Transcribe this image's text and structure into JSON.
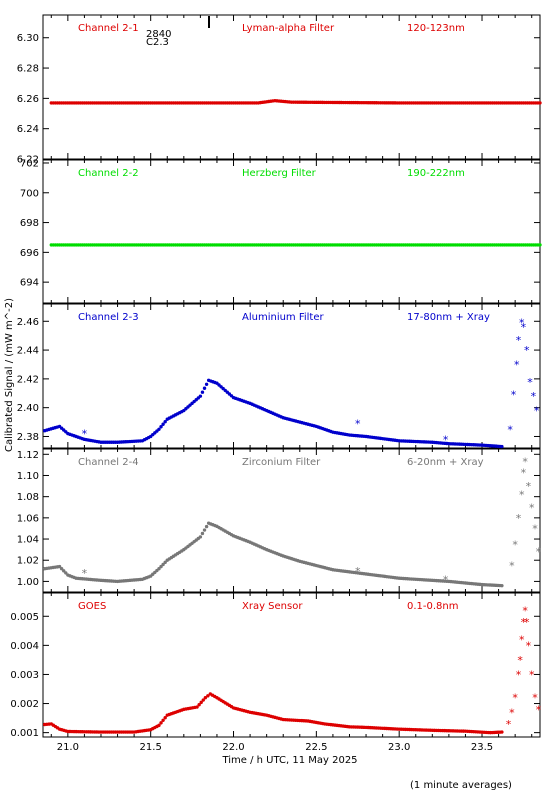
{
  "chart_data": {
    "type": "scatter",
    "xlabel": "Time / h UTC, 11 May 2025",
    "ylabel": "Calibrated Signal / (mW m^-2)",
    "xlim": [
      20.85,
      23.85
    ],
    "x_ticks": [
      "21.0",
      "21.5",
      "22.0",
      "22.5",
      "23.0",
      "23.5"
    ],
    "footnote": "(1 minute averages)",
    "annotation": {
      "lines": [
        "2840",
        "C2.3"
      ],
      "x": 21.87
    },
    "panels": [
      {
        "channel": "Channel 2-1",
        "filter": "Lyman-alpha Filter",
        "band": "120-123nm",
        "color": "#dd0000",
        "ylim": [
          6.22,
          6.315
        ],
        "ytick_values": [
          6.22,
          6.24,
          6.26,
          6.28,
          6.3
        ],
        "ytick_labels": [
          "6.22",
          "6.24",
          "6.26",
          "6.28",
          "6.30"
        ],
        "points": [
          [
            20.9,
            6.257
          ],
          [
            21.5,
            6.257
          ],
          [
            22.15,
            6.257
          ],
          [
            22.25,
            6.2585
          ],
          [
            22.35,
            6.2575
          ],
          [
            23.0,
            6.257
          ],
          [
            23.85,
            6.257
          ]
        ],
        "outliers": []
      },
      {
        "channel": "Channel 2-2",
        "filter": "Herzberg Filter",
        "band": "190-222nm",
        "color": "#00dd00",
        "ylim": [
          692.6,
          702.2
        ],
        "ytick_values": [
          694,
          696,
          698,
          700,
          702
        ],
        "ytick_labels": [
          "694",
          "696",
          "698",
          "700",
          "702"
        ],
        "points": [
          [
            20.9,
            696.5
          ],
          [
            21.5,
            696.5
          ],
          [
            22.0,
            696.5
          ],
          [
            22.5,
            696.5
          ],
          [
            23.0,
            696.5
          ],
          [
            23.85,
            696.5
          ]
        ],
        "outliers": []
      },
      {
        "channel": "Channel 2-3",
        "filter": "Aluminium Filter",
        "band": "17-80nm + Xray",
        "color": "#0000cc",
        "ylim": [
          2.372,
          2.472
        ],
        "ytick_values": [
          2.38,
          2.4,
          2.42,
          2.44,
          2.46
        ],
        "ytick_labels": [
          "2.38",
          "2.40",
          "2.42",
          "2.44",
          "2.46"
        ],
        "points": [
          [
            20.86,
            2.384
          ],
          [
            20.95,
            2.387
          ],
          [
            21.0,
            2.382
          ],
          [
            21.05,
            2.38
          ],
          [
            21.1,
            2.378
          ],
          [
            21.2,
            2.376
          ],
          [
            21.3,
            2.376
          ],
          [
            21.45,
            2.377
          ],
          [
            21.5,
            2.38
          ],
          [
            21.55,
            2.385
          ],
          [
            21.6,
            2.392
          ],
          [
            21.7,
            2.398
          ],
          [
            21.8,
            2.408
          ],
          [
            21.85,
            2.419
          ],
          [
            21.9,
            2.417
          ],
          [
            22.0,
            2.407
          ],
          [
            22.1,
            2.403
          ],
          [
            22.2,
            2.398
          ],
          [
            22.3,
            2.393
          ],
          [
            22.4,
            2.39
          ],
          [
            22.5,
            2.387
          ],
          [
            22.6,
            2.383
          ],
          [
            22.7,
            2.381
          ],
          [
            22.8,
            2.38
          ],
          [
            23.0,
            2.377
          ],
          [
            23.2,
            2.376
          ],
          [
            23.3,
            2.375
          ],
          [
            23.5,
            2.374
          ],
          [
            23.62,
            2.373
          ]
        ],
        "outliers": [
          [
            21.1,
            2.382
          ],
          [
            22.75,
            2.389
          ],
          [
            23.28,
            2.378
          ],
          [
            23.67,
            2.385
          ],
          [
            23.69,
            2.409
          ],
          [
            23.71,
            2.43
          ],
          [
            23.72,
            2.447
          ],
          [
            23.74,
            2.459
          ],
          [
            23.75,
            2.456
          ],
          [
            23.77,
            2.44
          ],
          [
            23.79,
            2.418
          ],
          [
            23.81,
            2.408
          ],
          [
            23.83,
            2.398
          ]
        ]
      },
      {
        "channel": "Channel 2-4",
        "filter": "Zirconium Filter",
        "band": "6-20nm + Xray",
        "color": "#777777",
        "ylim": [
          0.99,
          1.125
        ],
        "ytick_values": [
          1.0,
          1.02,
          1.04,
          1.06,
          1.08,
          1.1,
          1.12
        ],
        "ytick_labels": [
          "1.00",
          "1.02",
          "1.04",
          "1.06",
          "1.08",
          "1.10",
          "1.12"
        ],
        "points": [
          [
            20.86,
            1.012
          ],
          [
            20.95,
            1.014
          ],
          [
            21.0,
            1.006
          ],
          [
            21.05,
            1.003
          ],
          [
            21.2,
            1.001
          ],
          [
            21.3,
            1.0
          ],
          [
            21.45,
            1.002
          ],
          [
            21.5,
            1.005
          ],
          [
            21.55,
            1.012
          ],
          [
            21.6,
            1.02
          ],
          [
            21.7,
            1.03
          ],
          [
            21.8,
            1.042
          ],
          [
            21.85,
            1.055
          ],
          [
            21.9,
            1.052
          ],
          [
            22.0,
            1.043
          ],
          [
            22.1,
            1.037
          ],
          [
            22.2,
            1.03
          ],
          [
            22.3,
            1.024
          ],
          [
            22.4,
            1.019
          ],
          [
            22.5,
            1.015
          ],
          [
            22.6,
            1.011
          ],
          [
            22.7,
            1.009
          ],
          [
            22.8,
            1.007
          ],
          [
            23.0,
            1.003
          ],
          [
            23.2,
            1.001
          ],
          [
            23.3,
            1.0
          ],
          [
            23.5,
            0.997
          ],
          [
            23.62,
            0.996
          ]
        ],
        "outliers": [
          [
            21.1,
            1.008
          ],
          [
            22.75,
            1.01
          ],
          [
            23.28,
            1.002
          ],
          [
            23.68,
            1.015
          ],
          [
            23.7,
            1.035
          ],
          [
            23.72,
            1.06
          ],
          [
            23.74,
            1.082
          ],
          [
            23.75,
            1.103
          ],
          [
            23.76,
            1.113
          ],
          [
            23.78,
            1.09
          ],
          [
            23.8,
            1.07
          ],
          [
            23.82,
            1.05
          ],
          [
            23.84,
            1.028
          ]
        ]
      },
      {
        "channel": "GOES",
        "filter": "Xray Sensor",
        "band": "0.1-0.8nm",
        "color": "#dd0000",
        "ylim": [
          0.00085,
          0.0058
        ],
        "ytick_values": [
          0.001,
          0.002,
          0.003,
          0.004,
          0.005
        ],
        "ytick_labels": [
          "0.001",
          "0.002",
          "0.003",
          "0.004",
          "0.005"
        ],
        "points": [
          [
            20.86,
            0.00128
          ],
          [
            20.9,
            0.0013
          ],
          [
            20.95,
            0.00112
          ],
          [
            21.0,
            0.00104
          ],
          [
            21.2,
            0.00102
          ],
          [
            21.4,
            0.00102
          ],
          [
            21.5,
            0.0011
          ],
          [
            21.55,
            0.00125
          ],
          [
            21.6,
            0.0016
          ],
          [
            21.7,
            0.0018
          ],
          [
            21.78,
            0.00188
          ],
          [
            21.83,
            0.0022
          ],
          [
            21.86,
            0.00233
          ],
          [
            21.9,
            0.0022
          ],
          [
            22.0,
            0.00185
          ],
          [
            22.1,
            0.0017
          ],
          [
            22.2,
            0.0016
          ],
          [
            22.3,
            0.00145
          ],
          [
            22.45,
            0.0014
          ],
          [
            22.55,
            0.0013
          ],
          [
            22.7,
            0.0012
          ],
          [
            22.8,
            0.00118
          ],
          [
            23.0,
            0.00112
          ],
          [
            23.2,
            0.00108
          ],
          [
            23.4,
            0.00105
          ],
          [
            23.55,
            0.001
          ],
          [
            23.62,
            0.00102
          ]
        ],
        "outliers": [
          [
            23.66,
            0.0013
          ],
          [
            23.68,
            0.0017
          ],
          [
            23.7,
            0.0022
          ],
          [
            23.72,
            0.003
          ],
          [
            23.73,
            0.0035
          ],
          [
            23.74,
            0.0042
          ],
          [
            23.75,
            0.0048
          ],
          [
            23.76,
            0.0052
          ],
          [
            23.77,
            0.0048
          ],
          [
            23.78,
            0.004
          ],
          [
            23.8,
            0.003
          ],
          [
            23.82,
            0.0022
          ],
          [
            23.84,
            0.0018
          ]
        ]
      }
    ]
  }
}
